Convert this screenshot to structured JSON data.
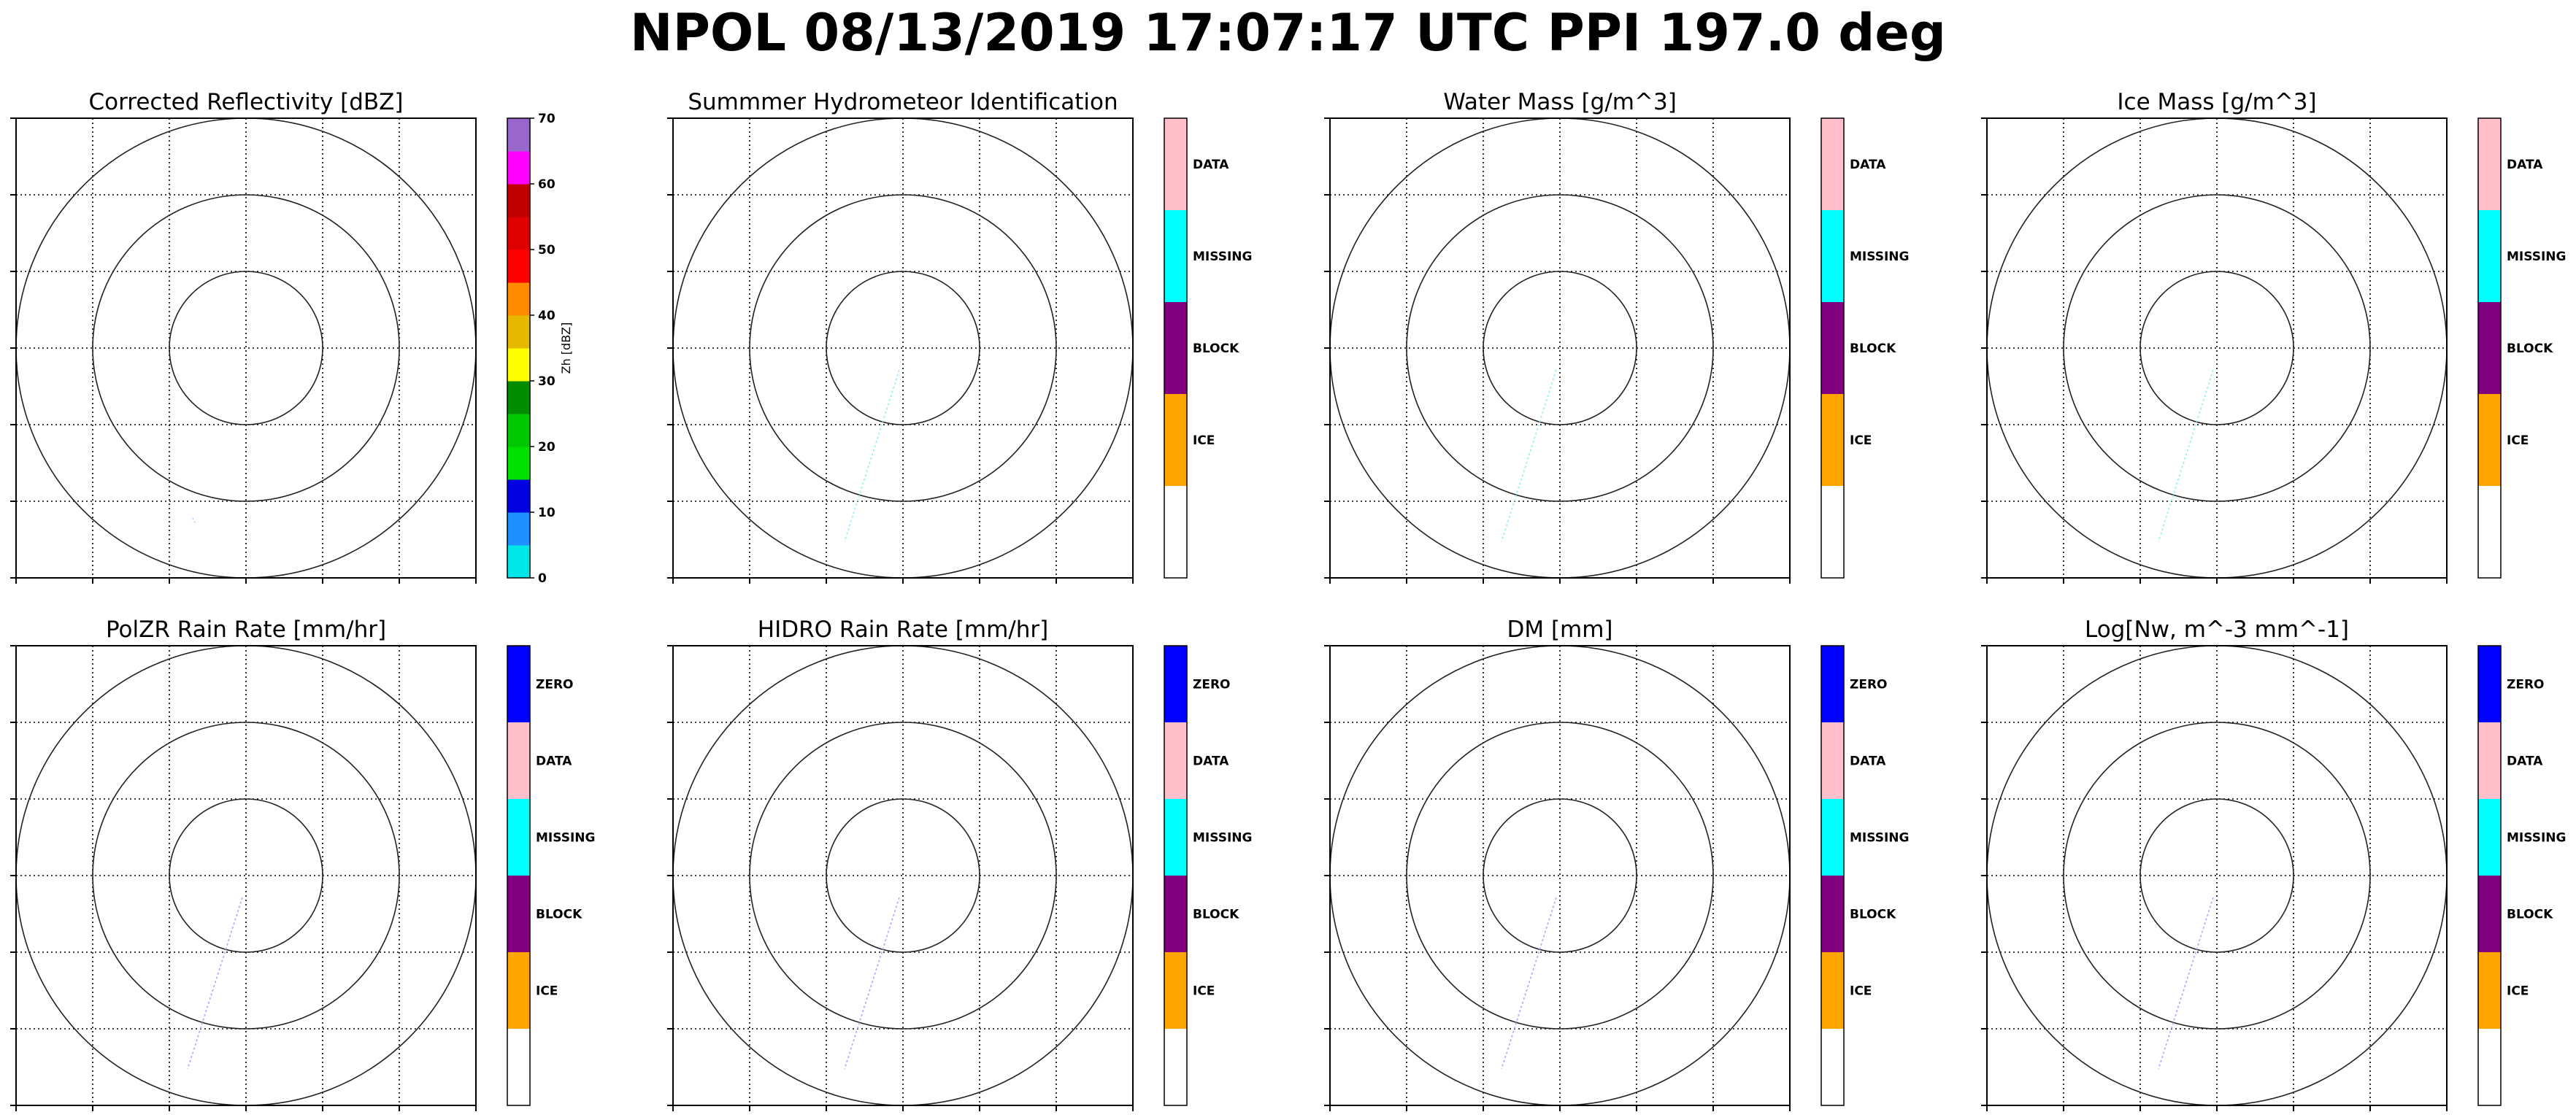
{
  "figure": {
    "suptitle": "NPOL 08/13/2019 17:07:17 UTC PPI 197.0 deg",
    "colors": {
      "reflectivity": [
        "#00e5e5",
        "#1e90ff",
        "#0000e0",
        "#00e000",
        "#00c800",
        "#008c00",
        "#ffff00",
        "#e6b800",
        "#ff8c00",
        "#ff0000",
        "#e00000",
        "#c00000",
        "#ff00ff",
        "#9966cc"
      ],
      "zero": "#0000ff",
      "data": "#ffc0cb",
      "missing": "#00ffff",
      "block": "#800080",
      "ice": "#ffa500",
      "blank": "#ffffff"
    }
  },
  "chart_data": [
    {
      "type": "ppi",
      "title": "Corrected Reflectivity [dBZ]",
      "colorbar": {
        "type": "continuous",
        "label": "Zh [dBZ]",
        "range": [
          0,
          70
        ],
        "ticks": [
          "0",
          "10",
          "20",
          "30",
          "40",
          "50",
          "60",
          "70"
        ]
      }
    },
    {
      "type": "ppi",
      "title": "Summmer Hydrometeor Identification",
      "colorbar": {
        "type": "categorical",
        "labels": [
          "",
          "ICE",
          "BLOCK",
          "MISSING",
          "DATA"
        ]
      }
    },
    {
      "type": "ppi",
      "title": "Water Mass [g/m^3]",
      "colorbar": {
        "type": "categorical",
        "labels": [
          "",
          "ICE",
          "BLOCK",
          "MISSING",
          "DATA"
        ]
      }
    },
    {
      "type": "ppi",
      "title": "Ice Mass [g/m^3]",
      "colorbar": {
        "type": "categorical",
        "labels": [
          "",
          "ICE",
          "BLOCK",
          "MISSING",
          "DATA"
        ]
      }
    },
    {
      "type": "ppi",
      "title": "PolZR Rain Rate [mm/hr]",
      "colorbar": {
        "type": "categorical",
        "labels": [
          "",
          "ICE",
          "BLOCK",
          "MISSING",
          "DATA",
          "ZERO"
        ]
      }
    },
    {
      "type": "ppi",
      "title": "HIDRO Rain Rate [mm/hr]",
      "colorbar": {
        "type": "categorical",
        "labels": [
          "",
          "ICE",
          "BLOCK",
          "MISSING",
          "DATA",
          "ZERO"
        ]
      }
    },
    {
      "type": "ppi",
      "title": "DM [mm]",
      "colorbar": {
        "type": "categorical",
        "labels": [
          "",
          "ICE",
          "BLOCK",
          "MISSING",
          "DATA",
          "ZERO"
        ]
      }
    },
    {
      "type": "ppi",
      "title": "Log[Nw, m^-3 mm^-1]",
      "colorbar": {
        "type": "categorical",
        "labels": [
          "",
          "ICE",
          "BLOCK",
          "MISSING",
          "DATA",
          "ZERO"
        ]
      }
    }
  ]
}
